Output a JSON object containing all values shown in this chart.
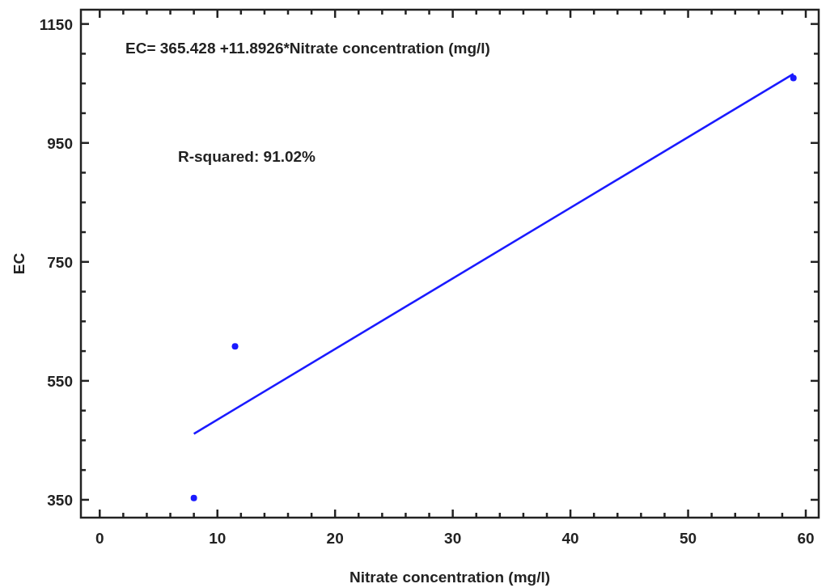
{
  "chart_data": {
    "type": "scatter",
    "xlabel": "Nitrate concentration (mg/l)",
    "ylabel": "EC",
    "xlim": [
      -1.6,
      61.1
    ],
    "ylim": [
      320,
      1174
    ],
    "xticks": [
      0,
      {
        "value": 2,
        "label": null
      },
      {
        "value": 4,
        "label": null
      },
      {
        "value": 6,
        "label": null
      },
      {
        "value": 8,
        "label": null
      },
      10,
      {
        "value": 12,
        "label": null
      },
      {
        "value": 14,
        "label": null
      },
      {
        "value": 16,
        "label": null
      },
      {
        "value": 18,
        "label": null
      },
      20,
      {
        "value": 22,
        "label": null
      },
      {
        "value": 24,
        "label": null
      },
      {
        "value": 26,
        "label": null
      },
      {
        "value": 28,
        "label": null
      },
      30,
      {
        "value": 32,
        "label": null
      },
      {
        "value": 34,
        "label": null
      },
      {
        "value": 36,
        "label": null
      },
      {
        "value": 38,
        "label": null
      },
      40,
      {
        "value": 42,
        "label": null
      },
      {
        "value": 44,
        "label": null
      },
      {
        "value": 46,
        "label": null
      },
      {
        "value": 48,
        "label": null
      },
      50,
      {
        "value": 52,
        "label": null
      },
      {
        "value": 54,
        "label": null
      },
      {
        "value": 56,
        "label": null
      },
      {
        "value": 58,
        "label": null
      },
      60
    ],
    "yticks": [
      350,
      {
        "value": 400,
        "label": null
      },
      {
        "value": 450,
        "label": null
      },
      {
        "value": 500,
        "label": null
      },
      550,
      {
        "value": 600,
        "label": null
      },
      {
        "value": 650,
        "label": null
      },
      {
        "value": 700,
        "label": null
      },
      750,
      {
        "value": 800,
        "label": null
      },
      {
        "value": 850,
        "label": null
      },
      {
        "value": 900,
        "label": null
      },
      950,
      {
        "value": 1000,
        "label": null
      },
      {
        "value": 1050,
        "label": null
      },
      {
        "value": 1100,
        "label": null
      },
      1150
    ],
    "grid": false,
    "series": [
      {
        "color": "#1a1aff",
        "marker": "circle",
        "x": [
          8,
          11.5,
          58.95
        ],
        "values": [
          353,
          608,
          1059
        ]
      },
      {
        "type": "line",
        "color": "#1a1aff",
        "x": [
          8,
          58.95
        ],
        "values": [
          461,
          1066
        ]
      }
    ],
    "annotations": [
      {
        "text": "EC= 365.428 +11.8926*Nitrate concentration (mg/l)"
      },
      {
        "text": "R-squared: 91.02%"
      }
    ]
  }
}
